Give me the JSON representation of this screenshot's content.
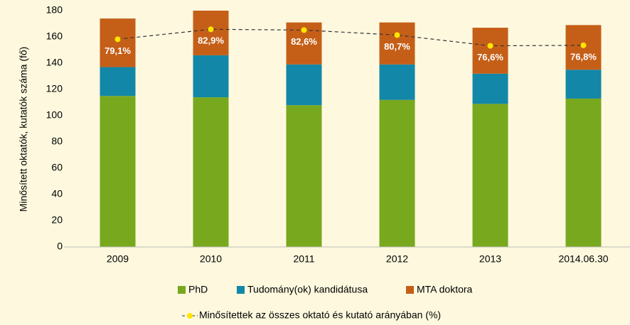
{
  "chart_data": {
    "type": "bar",
    "stacked": true,
    "y_label": "Minősített oktatók, kutatók száma (fő)",
    "categories": [
      "2009",
      "2010",
      "2011",
      "2012",
      "2013",
      "2014.06.30"
    ],
    "series": [
      {
        "name": "PhD",
        "color": "#78a81e",
        "values": [
          115,
          114,
          108,
          112,
          109,
          113
        ]
      },
      {
        "name": "Tudomány(ok) kandidátusa",
        "color": "#1287a8",
        "values": [
          22,
          32,
          31,
          27,
          23,
          22
        ]
      },
      {
        "name": "MTA doktora",
        "color": "#c55f18",
        "values": [
          37,
          34,
          32,
          32,
          35,
          34
        ]
      },
      {
        "name": "Minősítettek az összes oktató és kutató arányában (%)",
        "type": "line",
        "axis": "y2",
        "color": "#333333",
        "marker_color": "#ffe500",
        "values": [
          79.1,
          82.9,
          82.6,
          80.7,
          76.6,
          76.8
        ],
        "value_labels": [
          "79,1%",
          "82,9%",
          "82,6%",
          "80,7%",
          "76,6%",
          "76,8%"
        ]
      }
    ],
    "ylim": [
      0,
      180
    ],
    "yticks": [
      0,
      20,
      40,
      60,
      80,
      100,
      120,
      140,
      160,
      180
    ],
    "y2lim": [
      0,
      90
    ],
    "grid": false
  }
}
